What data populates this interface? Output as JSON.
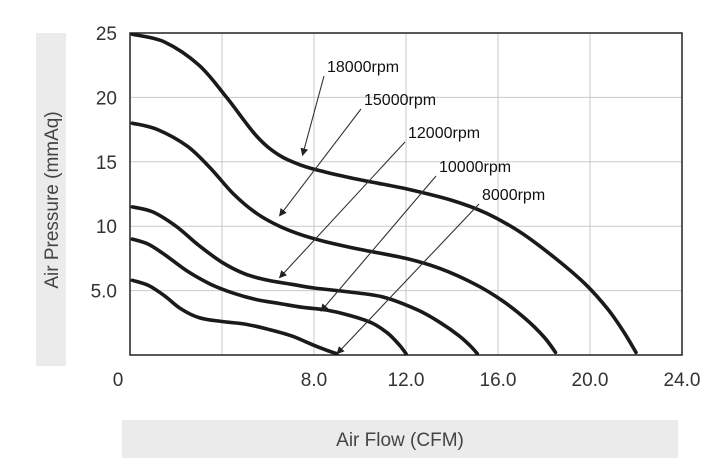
{
  "chart_data": {
    "type": "line",
    "title": "",
    "xlabel": "Air Flow (CFM)",
    "ylabel": "Air Pressure (mmAq)",
    "xlim": [
      0,
      24
    ],
    "ylim": [
      0,
      25
    ],
    "x_tick_values": [
      0,
      8,
      12,
      16,
      20,
      24
    ],
    "x_tick_labels": [
      "0",
      "8.0",
      "12.0",
      "16.0",
      "20.0",
      "24.0"
    ],
    "y_tick_values": [
      5,
      10,
      15,
      20,
      25
    ],
    "y_tick_labels": [
      "5.0",
      "10",
      "15",
      "20",
      "25"
    ],
    "grid": true,
    "series": [
      {
        "name": "18000rpm",
        "x": [
          0.1,
          1.5,
          3.0,
          4.2,
          5.5,
          6.5,
          7.5,
          8.5,
          10.0,
          12.0,
          14.0,
          15.5,
          17.0,
          18.5,
          19.8,
          20.8,
          21.5,
          22.0
        ],
        "y": [
          24.9,
          24.3,
          22.5,
          20.0,
          17.0,
          15.5,
          14.7,
          14.2,
          13.6,
          12.9,
          12.0,
          11.0,
          9.5,
          7.5,
          5.5,
          3.5,
          1.7,
          0.2
        ],
        "arrow_at": [
          7.5,
          15.5
        ]
      },
      {
        "name": "15000rpm",
        "x": [
          0.1,
          1.2,
          2.5,
          3.5,
          4.5,
          5.5,
          6.5,
          7.5,
          8.5,
          10.0,
          12.0,
          13.5,
          15.0,
          16.2,
          17.2,
          18.0,
          18.5
        ],
        "y": [
          18.0,
          17.5,
          16.2,
          14.5,
          12.5,
          11.0,
          10.0,
          9.3,
          8.8,
          8.2,
          7.5,
          6.7,
          5.5,
          4.2,
          2.8,
          1.4,
          0.2
        ],
        "arrow_at": [
          6.5,
          10.8
        ]
      },
      {
        "name": "12000rpm",
        "x": [
          0.1,
          1.0,
          2.0,
          3.0,
          4.0,
          5.0,
          6.0,
          7.0,
          8.0,
          9.5,
          11.0,
          12.5,
          13.5,
          14.3,
          14.8,
          15.1
        ],
        "y": [
          11.5,
          11.1,
          10.0,
          8.5,
          7.2,
          6.3,
          5.8,
          5.5,
          5.2,
          4.9,
          4.5,
          3.5,
          2.5,
          1.5,
          0.7,
          0.1
        ],
        "arrow_at": [
          6.5,
          6.0
        ]
      },
      {
        "name": "10000rpm",
        "x": [
          0.1,
          0.8,
          1.5,
          2.5,
          3.5,
          4.5,
          5.5,
          6.5,
          7.5,
          8.5,
          9.5,
          10.5,
          11.2,
          11.7,
          12.0
        ],
        "y": [
          9.0,
          8.6,
          7.8,
          6.5,
          5.5,
          4.8,
          4.3,
          4.0,
          3.7,
          3.5,
          3.1,
          2.5,
          1.7,
          0.8,
          0.1
        ],
        "arrow_at": [
          8.3,
          3.4
        ]
      },
      {
        "name": "8000rpm",
        "x": [
          0.1,
          0.8,
          1.5,
          2.2,
          3.0,
          4.0,
          5.0,
          6.0,
          7.0,
          7.8,
          8.5,
          9.0
        ],
        "y": [
          5.8,
          5.4,
          4.6,
          3.6,
          2.9,
          2.6,
          2.4,
          2.0,
          1.5,
          0.9,
          0.4,
          0.1
        ],
        "arrow_at": [
          9.0,
          0.1
        ]
      }
    ]
  }
}
